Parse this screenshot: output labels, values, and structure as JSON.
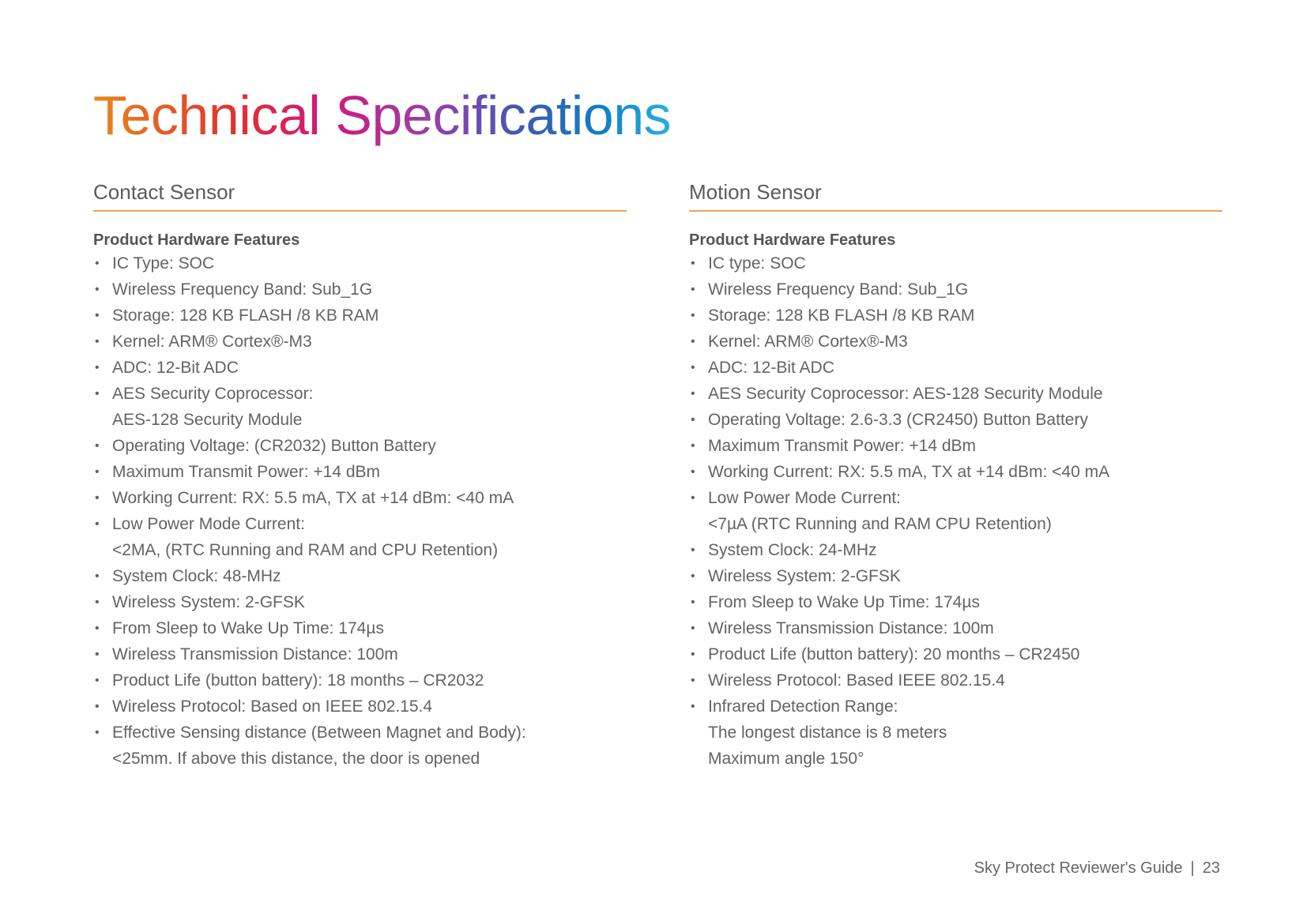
{
  "page": {
    "title": "Technical Specifications"
  },
  "contact_sensor": {
    "heading": "Contact Sensor",
    "subheading": "Product Hardware Features",
    "items": [
      [
        "IC Type: SOC"
      ],
      [
        "Wireless Frequency Band: Sub_1G"
      ],
      [
        "Storage: 128 KB FLASH /8 KB RAM"
      ],
      [
        "Kernel: ARM® Cortex®-M3"
      ],
      [
        "ADC: 12-Bit ADC"
      ],
      [
        "AES Security Coprocessor:",
        "AES-128 Security Module"
      ],
      [
        "Operating Voltage: (CR2032) Button Battery"
      ],
      [
        "Maximum Transmit Power: +14 dBm"
      ],
      [
        "Working Current: RX: 5.5 mA, TX at +14 dBm: <40 mA"
      ],
      [
        "Low Power Mode Current:",
        "<2MA, (RTC Running and RAM and CPU Retention)"
      ],
      [
        "System Clock: 48-MHz"
      ],
      [
        "Wireless System: 2-GFSK"
      ],
      [
        "From Sleep to Wake Up Time: 174µs"
      ],
      [
        "Wireless Transmission Distance: 100m"
      ],
      [
        "Product Life (button battery): 18 months – CR2032"
      ],
      [
        "Wireless Protocol: Based on IEEE 802.15.4"
      ],
      [
        "Effective Sensing distance (Between Magnet and Body):",
        "<25mm. If above this distance, the door is opened"
      ]
    ]
  },
  "motion_sensor": {
    "heading": "Motion Sensor",
    "subheading": "Product Hardware Features",
    "items": [
      [
        "IC type: SOC"
      ],
      [
        "Wireless Frequency Band: Sub_1G"
      ],
      [
        "Storage: 128 KB FLASH /8 KB RAM"
      ],
      [
        "Kernel: ARM® Cortex®-M3"
      ],
      [
        "ADC: 12-Bit ADC"
      ],
      [
        "AES Security Coprocessor: AES-128 Security Module"
      ],
      [
        "Operating Voltage: 2.6-3.3 (CR2450) Button Battery"
      ],
      [
        "Maximum Transmit Power: +14 dBm"
      ],
      [
        "Working Current: RX: 5.5 mA, TX at +14 dBm: <40 mA"
      ],
      [
        "Low Power Mode Current:",
        "<7µA (RTC Running and RAM CPU Retention)"
      ],
      [
        "System Clock: 24-MHz"
      ],
      [
        "Wireless System: 2-GFSK"
      ],
      [
        "From Sleep to Wake Up Time: 174µs"
      ],
      [
        "Wireless Transmission Distance: 100m"
      ],
      [
        "Product Life (button battery): 20 months – CR2450"
      ],
      [
        "Wireless Protocol: Based IEEE 802.15.4"
      ],
      [
        "Infrared Detection Range:",
        "The longest distance is 8 meters",
        "Maximum angle 150°"
      ]
    ]
  },
  "footer": {
    "guide": "Sky Protect Reviewer's Guide",
    "separator": "|",
    "page_number": "23"
  }
}
